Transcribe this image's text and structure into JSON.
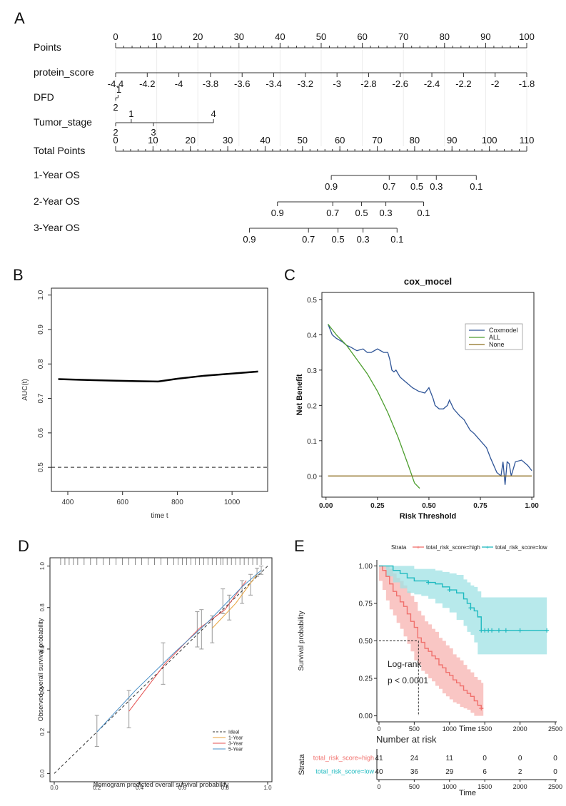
{
  "panel_labels": {
    "A": "A",
    "B": "B",
    "C": "C",
    "D": "D",
    "E": "E"
  },
  "chart_data": [
    {
      "type": "nomogram",
      "panel": "A",
      "rows": [
        {
          "label": "Points",
          "kind": "scale",
          "min": 0,
          "max": 100,
          "ticks": [
            0,
            10,
            20,
            30,
            40,
            50,
            60,
            70,
            80,
            90,
            100
          ],
          "minor_step": 2
        },
        {
          "label": "protein_score",
          "kind": "variable",
          "ticks": [
            -4.4,
            -4.2,
            -4,
            -3.8,
            -3.6,
            -3.4,
            -3.2,
            -3,
            -2.8,
            -2.6,
            -2.4,
            -2.2,
            -2,
            -1.8
          ],
          "tick_labels": [
            "-4.4",
            "-4.2",
            "-4",
            "-3.8",
            "-3.6",
            "-3.4",
            "-3.2",
            "-3",
            "-2.8",
            "-2.6",
            "-2.4",
            "-2.2",
            "-2",
            "-1.8"
          ],
          "points": [
            0,
            7.69,
            15.38,
            23.08,
            30.77,
            38.46,
            46.15,
            53.85,
            61.54,
            69.23,
            76.92,
            84.62,
            92.31,
            100
          ]
        },
        {
          "label": "DFD",
          "kind": "variable",
          "tick_labels": [
            "1",
            "2"
          ],
          "points": [
            0.6,
            0
          ]
        },
        {
          "label": "Tumor_stage",
          "kind": "variable",
          "tick_labels": [
            "1",
            "2",
            "3",
            "4"
          ],
          "points": [
            3.8,
            0,
            9.2,
            23.8
          ]
        },
        {
          "label": "Total Points",
          "kind": "scale",
          "min": 0,
          "max": 110,
          "ticks": [
            0,
            10,
            20,
            30,
            40,
            50,
            60,
            70,
            80,
            90,
            100,
            110
          ],
          "minor_step": 2
        },
        {
          "label": "1-Year OS",
          "kind": "outcome",
          "tick_labels": [
            "0.9",
            "0.7",
            "0.5",
            "0.3",
            "0.1"
          ],
          "total_points": [
            57.7,
            73.2,
            80.6,
            85.8,
            96.5
          ]
        },
        {
          "label": "2-Year OS",
          "kind": "outcome",
          "tick_labels": [
            "0.9",
            "0.7",
            "0.5",
            "0.3",
            "0.1"
          ],
          "total_points": [
            43.3,
            58.1,
            65.8,
            72.3,
            82.4
          ]
        },
        {
          "label": "3-Year OS",
          "kind": "outcome",
          "tick_labels": [
            "0.9",
            "0.7",
            "0.5",
            "0.3",
            "0.1"
          ],
          "total_points": [
            35.8,
            51.6,
            59.5,
            66.2,
            75.3
          ]
        }
      ]
    },
    {
      "type": "line",
      "panel": "B",
      "xlabel": "time t",
      "ylabel": "AUC(t)",
      "xlim": [
        340,
        1130
      ],
      "ylim": [
        0.43,
        1.02
      ],
      "xticks": [
        400,
        600,
        800,
        1000
      ],
      "yticks": [
        0.5,
        0.6,
        0.7,
        0.8,
        0.9,
        1.0
      ],
      "ytick_labels": [
        "0.5",
        "0.6",
        "0.7",
        "0.8",
        "0.9",
        "1.0"
      ],
      "series": [
        {
          "style": "solid",
          "x": [
            365,
            450,
            550,
            650,
            730,
            800,
            900,
            1000,
            1095
          ],
          "values": [
            0.756,
            0.754,
            0.752,
            0.75,
            0.749,
            0.757,
            0.766,
            0.772,
            0.778
          ]
        },
        {
          "style": "dashed",
          "x": [
            340,
            1130
          ],
          "values": [
            0.5,
            0.5
          ]
        }
      ]
    },
    {
      "type": "line",
      "panel": "C",
      "title": "cox_mocel",
      "xlabel": "Risk Threshold",
      "ylabel": "Net Benefit",
      "xlim": [
        -0.02,
        1.01
      ],
      "ylim": [
        -0.06,
        0.52
      ],
      "xticks": [
        0,
        0.25,
        0.5,
        0.75,
        1.0
      ],
      "xtick_labels": [
        "0.00",
        "0.25",
        "0.50",
        "0.75",
        "1.00"
      ],
      "yticks": [
        0,
        0.1,
        0.2,
        0.3,
        0.4,
        0.5
      ],
      "ytick_labels": [
        "0.0",
        "0.1",
        "0.2",
        "0.3",
        "0.4",
        "0.5"
      ],
      "legend": "top-right",
      "series": [
        {
          "name": "Coxmodel",
          "color": "#2f5597",
          "x": [
            0.01,
            0.03,
            0.05,
            0.08,
            0.1,
            0.12,
            0.15,
            0.18,
            0.2,
            0.22,
            0.25,
            0.28,
            0.3,
            0.31,
            0.32,
            0.33,
            0.34,
            0.36,
            0.38,
            0.4,
            0.42,
            0.45,
            0.48,
            0.5,
            0.52,
            0.53,
            0.55,
            0.57,
            0.59,
            0.6,
            0.62,
            0.65,
            0.67,
            0.7,
            0.72,
            0.75,
            0.78,
            0.8,
            0.83,
            0.85,
            0.86,
            0.87,
            0.88,
            0.89,
            0.9,
            0.92,
            0.95,
            0.98,
            1.0
          ],
          "values": [
            0.43,
            0.4,
            0.39,
            0.38,
            0.37,
            0.365,
            0.355,
            0.36,
            0.35,
            0.35,
            0.36,
            0.35,
            0.35,
            0.33,
            0.3,
            0.295,
            0.3,
            0.28,
            0.27,
            0.26,
            0.25,
            0.24,
            0.235,
            0.25,
            0.22,
            0.2,
            0.19,
            0.19,
            0.2,
            0.215,
            0.19,
            0.17,
            0.16,
            0.13,
            0.12,
            0.1,
            0.08,
            0.05,
            0.01,
            0.0,
            0.04,
            -0.025,
            0.04,
            0.035,
            0.0,
            0.04,
            0.045,
            0.03,
            0.015
          ]
        },
        {
          "name": "ALL",
          "color": "#4d9e2f",
          "x": [
            0.01,
            0.05,
            0.1,
            0.15,
            0.2,
            0.25,
            0.3,
            0.35,
            0.4,
            0.43,
            0.455
          ],
          "values": [
            0.43,
            0.4,
            0.37,
            0.33,
            0.29,
            0.24,
            0.18,
            0.11,
            0.03,
            -0.02,
            -0.035
          ]
        },
        {
          "name": "None",
          "color": "#8c6d1f",
          "x": [
            0.01,
            1.0
          ],
          "values": [
            0.0,
            0.0
          ]
        }
      ]
    },
    {
      "type": "line",
      "panel": "D",
      "xlabel": "Nomogram predicted overall survival probability",
      "ylabel": "Observed overall survival probability",
      "xlim": [
        -0.02,
        1.02
      ],
      "ylim": [
        -0.04,
        1.04
      ],
      "xticks": [
        0,
        0.2,
        0.4,
        0.6,
        0.8,
        1.0
      ],
      "xtick_labels": [
        "0.0",
        "0.2",
        "0.4",
        "0.6",
        "0.8",
        "1.0"
      ],
      "yticks": [
        0,
        0.2,
        0.4,
        0.6,
        0.8,
        1.0
      ],
      "ytick_labels": [
        "0.0",
        "0.2",
        "0.4",
        "0.6",
        "0.8",
        "1.0"
      ],
      "legend": "bottom-right",
      "series": [
        {
          "name": "Ideal",
          "color": "#333333",
          "style": "dashed",
          "x": [
            0,
            1
          ],
          "values": [
            0,
            1
          ]
        },
        {
          "name": "1-Year",
          "color": "#e8a33d",
          "x": [
            0.74,
            0.85,
            0.95
          ],
          "values": [
            0.7,
            0.82,
            0.96
          ]
        },
        {
          "name": "3-Year",
          "color": "#e45050",
          "x": [
            0.35,
            0.52,
            0.68,
            0.8,
            0.9
          ],
          "values": [
            0.3,
            0.53,
            0.7,
            0.79,
            0.93
          ]
        },
        {
          "name": "5-Year",
          "color": "#4a90c8",
          "x": [
            0.2,
            0.38,
            0.56,
            0.72,
            0.88,
            0.97
          ],
          "values": [
            0.2,
            0.4,
            0.58,
            0.73,
            0.9,
            0.98
          ]
        }
      ],
      "error_bars": [
        {
          "x": 0.2,
          "low": 0.13,
          "high": 0.28
        },
        {
          "x": 0.35,
          "low": 0.22,
          "high": 0.4
        },
        {
          "x": 0.51,
          "low": 0.43,
          "high": 0.63
        },
        {
          "x": 0.67,
          "low": 0.61,
          "high": 0.78
        },
        {
          "x": 0.69,
          "low": 0.6,
          "high": 0.79
        },
        {
          "x": 0.74,
          "low": 0.63,
          "high": 0.76
        },
        {
          "x": 0.79,
          "low": 0.77,
          "high": 0.89
        },
        {
          "x": 0.82,
          "low": 0.74,
          "high": 0.86
        },
        {
          "x": 0.88,
          "low": 0.82,
          "high": 0.93
        },
        {
          "x": 0.92,
          "low": 0.86,
          "high": 0.96
        },
        {
          "x": 0.95,
          "low": 0.95,
          "high": 0.99
        },
        {
          "x": 0.97,
          "low": 0.96,
          "high": 1.0
        }
      ],
      "rug": [
        0.03,
        0.05,
        0.07,
        0.09,
        0.11,
        0.14,
        0.17,
        0.2,
        0.23,
        0.26,
        0.29,
        0.32,
        0.35,
        0.38,
        0.41,
        0.44,
        0.47,
        0.5,
        0.53,
        0.56,
        0.58,
        0.6,
        0.62,
        0.64,
        0.66,
        0.68,
        0.7,
        0.72,
        0.74,
        0.76,
        0.78,
        0.79,
        0.81,
        0.83,
        0.85,
        0.87,
        0.89,
        0.91,
        0.93,
        0.95,
        0.97
      ]
    },
    {
      "type": "line",
      "panel": "E",
      "xlabel": "Time",
      "ylabel": "Survival probability",
      "legend_title": "Strata",
      "legend": "top",
      "xlim": [
        -30,
        2520
      ],
      "ylim": [
        -0.04,
        1.04
      ],
      "xticks": [
        0,
        500,
        1000,
        1500,
        2000,
        2500
      ],
      "xtick_labels": [
        "0",
        "500",
        "1000",
        "1500",
        "2000",
        "2500"
      ],
      "yticks": [
        0,
        0.25,
        0.5,
        0.75,
        1.0
      ],
      "ytick_labels": [
        "0.00",
        "0.25",
        "0.50",
        "0.75",
        "1.00"
      ],
      "annotation": [
        "Log-rank",
        "p < 0.0001"
      ],
      "median_line": {
        "x": 560,
        "y": 0.5
      },
      "series": [
        {
          "name": "total_risk_score=high",
          "color": "#f0706c",
          "fill": "#f7b3b0",
          "x": [
            0,
            50,
            100,
            150,
            200,
            250,
            300,
            350,
            400,
            450,
            500,
            550,
            600,
            650,
            700,
            750,
            800,
            850,
            900,
            950,
            1000,
            1050,
            1100,
            1150,
            1200,
            1250,
            1300,
            1350,
            1400,
            1450,
            1480
          ],
          "values": [
            1.0,
            0.97,
            0.93,
            0.88,
            0.83,
            0.8,
            0.76,
            0.73,
            0.68,
            0.63,
            0.59,
            0.52,
            0.49,
            0.45,
            0.43,
            0.4,
            0.38,
            0.34,
            0.32,
            0.29,
            0.27,
            0.24,
            0.22,
            0.2,
            0.17,
            0.15,
            0.13,
            0.1,
            0.07,
            0.05,
            0.05
          ],
          "lower": [
            1.0,
            0.9,
            0.84,
            0.77,
            0.71,
            0.67,
            0.62,
            0.58,
            0.53,
            0.48,
            0.43,
            0.37,
            0.34,
            0.3,
            0.28,
            0.25,
            0.23,
            0.2,
            0.18,
            0.15,
            0.13,
            0.11,
            0.09,
            0.08,
            0.06,
            0.05,
            0.04,
            0.02,
            0.0,
            0.0,
            0.0
          ],
          "upper": [
            1.0,
            1.0,
            1.0,
            0.98,
            0.95,
            0.92,
            0.9,
            0.87,
            0.83,
            0.8,
            0.76,
            0.7,
            0.67,
            0.63,
            0.61,
            0.58,
            0.56,
            0.52,
            0.5,
            0.47,
            0.45,
            0.41,
            0.39,
            0.37,
            0.34,
            0.31,
            0.29,
            0.26,
            0.24,
            0.22,
            0.22
          ]
        },
        {
          "name": "total_risk_score=low",
          "color": "#1fbac0",
          "fill": "#9fe1e4",
          "x": [
            0,
            100,
            200,
            300,
            400,
            500,
            600,
            700,
            800,
            900,
            1000,
            1100,
            1200,
            1250,
            1300,
            1350,
            1400,
            1450,
            1500,
            1600,
            1800,
            2000,
            2200,
            2380
          ],
          "values": [
            1.0,
            1.0,
            0.97,
            0.95,
            0.92,
            0.9,
            0.9,
            0.89,
            0.88,
            0.86,
            0.84,
            0.82,
            0.78,
            0.75,
            0.72,
            0.7,
            0.66,
            0.57,
            0.57,
            0.57,
            0.57,
            0.57,
            0.57,
            0.57
          ],
          "lower": [
            1.0,
            1.0,
            0.93,
            0.89,
            0.85,
            0.82,
            0.81,
            0.8,
            0.78,
            0.75,
            0.72,
            0.69,
            0.64,
            0.6,
            0.56,
            0.54,
            0.49,
            0.41,
            0.41,
            0.41,
            0.41,
            0.41,
            0.41,
            0.41
          ],
          "upper": [
            1.0,
            1.0,
            1.0,
            1.0,
            1.0,
            0.98,
            0.98,
            0.98,
            0.97,
            0.96,
            0.95,
            0.94,
            0.91,
            0.89,
            0.87,
            0.86,
            0.83,
            0.79,
            0.79,
            0.79,
            0.79,
            0.79,
            0.79,
            0.79
          ],
          "censor_x": [
            700,
            1000,
            1300,
            1450,
            1500,
            1550,
            1600,
            1700,
            1800,
            2000,
            2380
          ]
        }
      ],
      "risk_table": {
        "title": "Number at risk",
        "strata_label": "Strata",
        "xlabel": "Time",
        "times": [
          0,
          500,
          1000,
          1500,
          2000,
          2500
        ],
        "rows": [
          {
            "name": "total_risk_score=high",
            "color": "#f0706c",
            "counts": [
              "41",
              "24",
              "11",
              "0",
              "0",
              "0"
            ]
          },
          {
            "name": "total_risk_score=low",
            "color": "#1fbac0",
            "counts": [
              "40",
              "36",
              "29",
              "6",
              "2",
              "0"
            ]
          }
        ]
      }
    }
  ]
}
